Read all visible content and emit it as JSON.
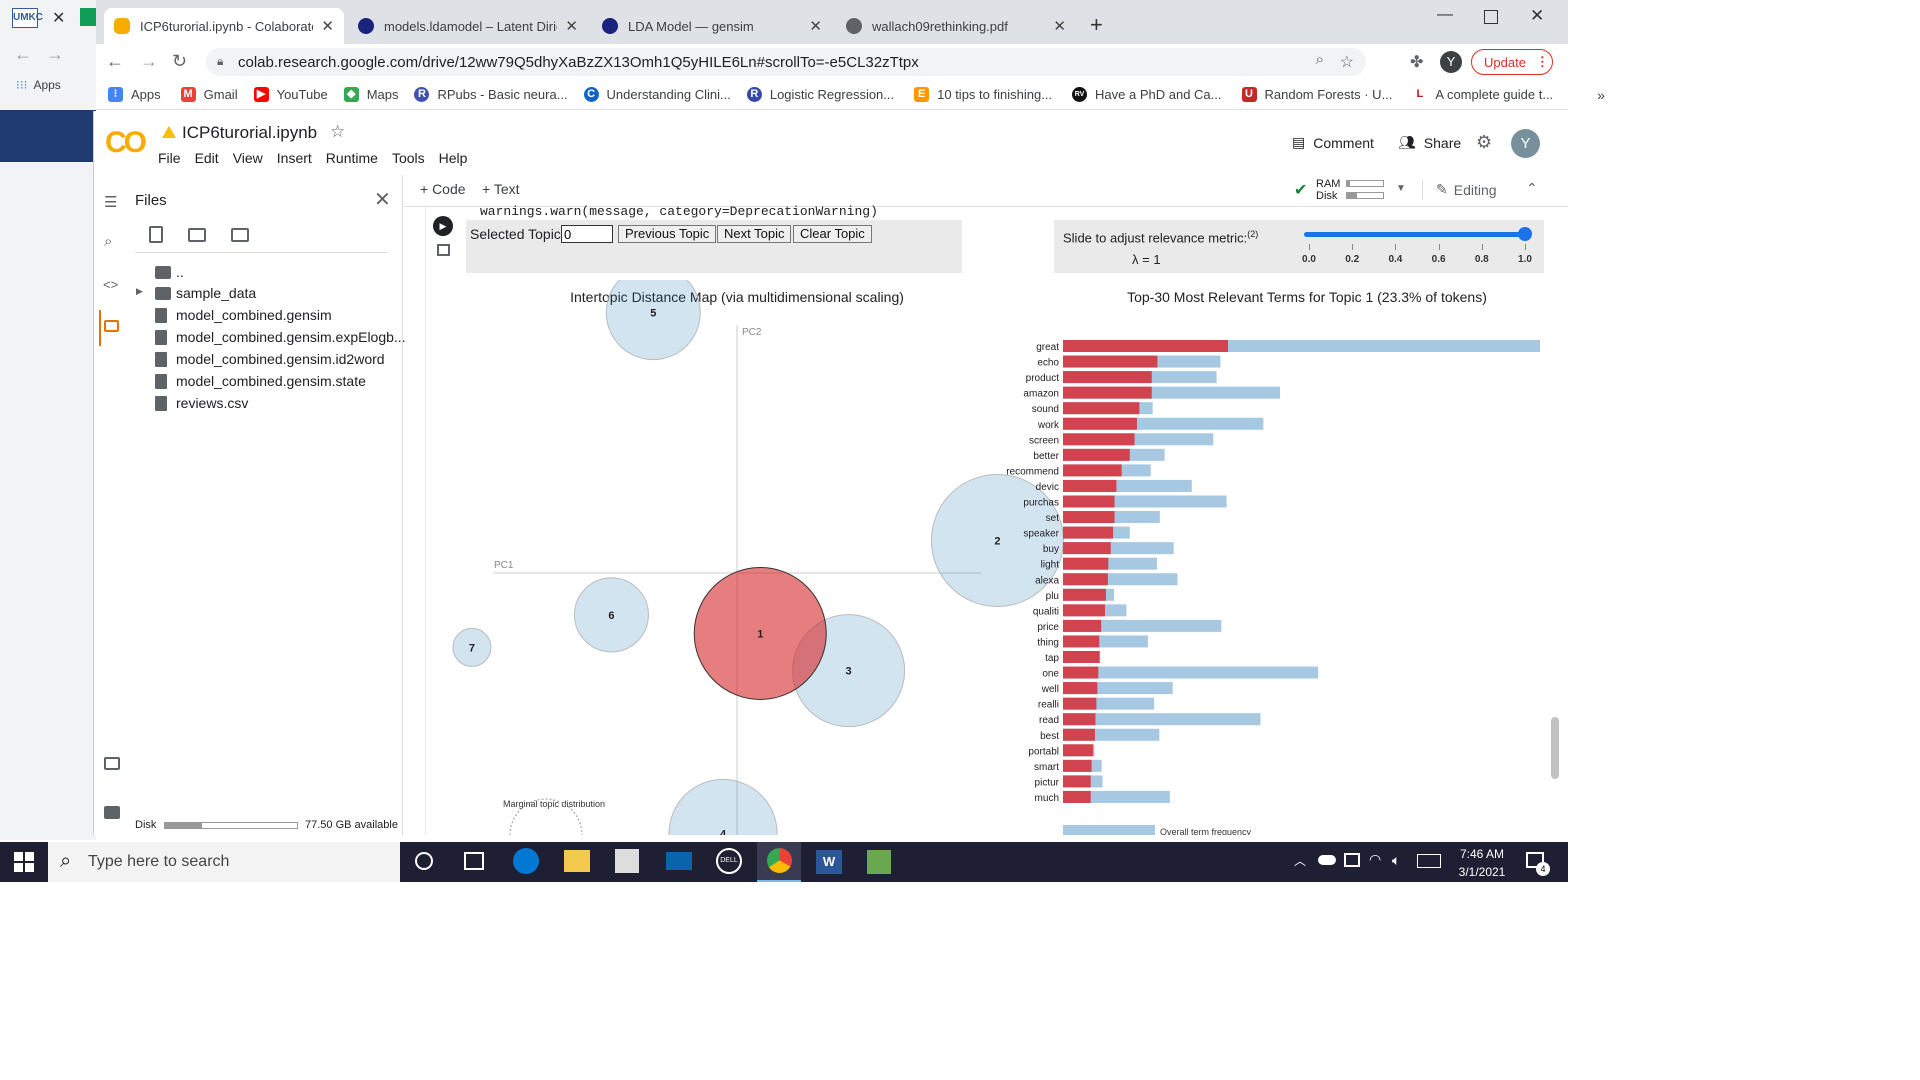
{
  "browser": {
    "tabs": [
      {
        "title": "ICP6turorial.ipynb - Colaboratory",
        "color": "#f9ab00",
        "active": true
      },
      {
        "title": "models.ldamodel – Latent Dirichl",
        "color": "#1a237e",
        "active": false
      },
      {
        "title": "LDA Model — gensim",
        "color": "#1a237e",
        "active": false
      },
      {
        "title": "wallach09rethinking.pdf",
        "color": "#5f6368",
        "active": false
      }
    ],
    "url": "colab.research.google.com/drive/12ww79Q5dhyXaBzZX13Omh1Q5yHILE6Ln#scrollTo=-e5CL32zTtpx",
    "profile_initial": "Y",
    "update_label": "Update",
    "bookmarks": [
      {
        "label": "Apps",
        "color": "#4285f4",
        "glyph": "⋮"
      },
      {
        "label": "Gmail",
        "color": "#ea4335",
        "glyph": "M"
      },
      {
        "label": "YouTube",
        "color": "#ff0000",
        "glyph": "▶"
      },
      {
        "label": "Maps",
        "color": "#34a853",
        "glyph": "◆"
      },
      {
        "label": "RPubs - Basic neura...",
        "color": "#3f51b5",
        "glyph": "R"
      },
      {
        "label": "Understanding Clini...",
        "color": "#1565c0",
        "glyph": "C"
      },
      {
        "label": "Logistic Regression...",
        "color": "#3949ab",
        "glyph": "R"
      },
      {
        "label": "10 tips to finishing...",
        "color": "#ff9800",
        "glyph": "E"
      },
      {
        "label": "Have a PhD and Ca...",
        "color": "#111111",
        "glyph": "RV"
      },
      {
        "label": "Random Forests · U...",
        "color": "#c62828",
        "glyph": "U"
      },
      {
        "label": "A complete guide t...",
        "color": "#b71c1c",
        "glyph": "L"
      }
    ],
    "more_label": "»"
  },
  "colab": {
    "logo": "CO",
    "notebook_title": "ICP6turorial.ipynb",
    "menu": [
      "File",
      "Edit",
      "View",
      "Insert",
      "Runtime",
      "Tools",
      "Help"
    ],
    "comment_label": "Comment",
    "share_label": "Share",
    "add_code_label": "+ Code",
    "add_text_label": "+ Text",
    "ram_label": "RAM",
    "disk_label": "Disk",
    "editing_label": "Editing"
  },
  "sidebar": {
    "title": "Files",
    "files": [
      "..",
      "sample_data",
      "model_combined.gensim",
      "model_combined.gensim.expElogb...",
      "model_combined.gensim.id2word",
      "model_combined.gensim.state",
      "reviews.csv"
    ],
    "disk_label": "Disk",
    "disk_available": "77.50 GB available"
  },
  "cell": {
    "output_warning": "warnings.warn(message, category=DeprecationWarning)"
  },
  "ldavis": {
    "selected_topic_label": "Selected Topic:",
    "selected_topic_value": "0",
    "prev_label": "Previous Topic",
    "next_label": "Next Topic",
    "clear_label": "Clear Topic",
    "slider_label": "Slide to adjust relevance metric:",
    "slider_sup": "(2)",
    "lambda_label": "λ = 1",
    "slider_ticks": [
      "0.0",
      "0.2",
      "0.4",
      "0.6",
      "0.8",
      "1.0"
    ],
    "slider_value": 1.0,
    "marginal_label": "Marginal topic distribution",
    "overall_label": "Overall term frequency"
  },
  "chart_data": [
    {
      "type": "scatter",
      "title": "Intertopic Distance Map (via multidimensional scaling)",
      "xlabel": "PC1",
      "ylabel": "PC2",
      "topics": [
        {
          "id": "1",
          "pc1": 0.05,
          "pc2": -0.13,
          "r": 66,
          "selected": true
        },
        {
          "id": "2",
          "pc1": 0.56,
          "pc2": 0.07,
          "r": 66,
          "selected": false
        },
        {
          "id": "3",
          "pc1": 0.24,
          "pc2": -0.21,
          "r": 56,
          "selected": false
        },
        {
          "id": "4",
          "pc1": -0.03,
          "pc2": -0.56,
          "r": 54,
          "selected": false
        },
        {
          "id": "5",
          "pc1": -0.18,
          "pc2": 0.56,
          "r": 47,
          "selected": false
        },
        {
          "id": "6",
          "pc1": -0.27,
          "pc2": -0.09,
          "r": 37,
          "selected": false
        },
        {
          "id": "7",
          "pc1": -0.57,
          "pc2": -0.16,
          "r": 19,
          "selected": false
        }
      ]
    },
    {
      "type": "bar",
      "title": "Top-30 Most Relevant Terms for Topic 1 (23.3% of tokens)",
      "categories": [
        "great",
        "echo",
        "product",
        "amazon",
        "sound",
        "work",
        "screen",
        "better",
        "recommend",
        "devic",
        "purchas",
        "set",
        "speaker",
        "buy",
        "light",
        "alexa",
        "plu",
        "qualiti",
        "price",
        "thing",
        "tap",
        "one",
        "well",
        "realli",
        "read",
        "best",
        "portabl",
        "smart",
        "pictur",
        "much"
      ],
      "series": [
        {
          "name": "Overall term frequency",
          "color": "#a6c8e2",
          "values": [
            1000,
            330,
            322,
            455,
            188,
            420,
            315,
            213,
            184,
            270,
            343,
            203,
            140,
            232,
            197,
            240,
            107,
            133,
            332,
            178,
            77,
            535,
            230,
            191,
            414,
            202,
            66,
            81,
            83,
            224
          ]
        },
        {
          "name": "Topic",
          "color": "#d0434f",
          "values": [
            346,
            198,
            186,
            186,
            160,
            155,
            150,
            140,
            123,
            112,
            108,
            108,
            105,
            100,
            95,
            94,
            90,
            88,
            80,
            76,
            77,
            74,
            72,
            70,
            68,
            67,
            63,
            60,
            58,
            58
          ]
        }
      ]
    }
  ],
  "taskbar": {
    "search_placeholder": "Type here to search",
    "time": "7:46 AM",
    "date": "3/1/2021",
    "notif_count": "4"
  }
}
